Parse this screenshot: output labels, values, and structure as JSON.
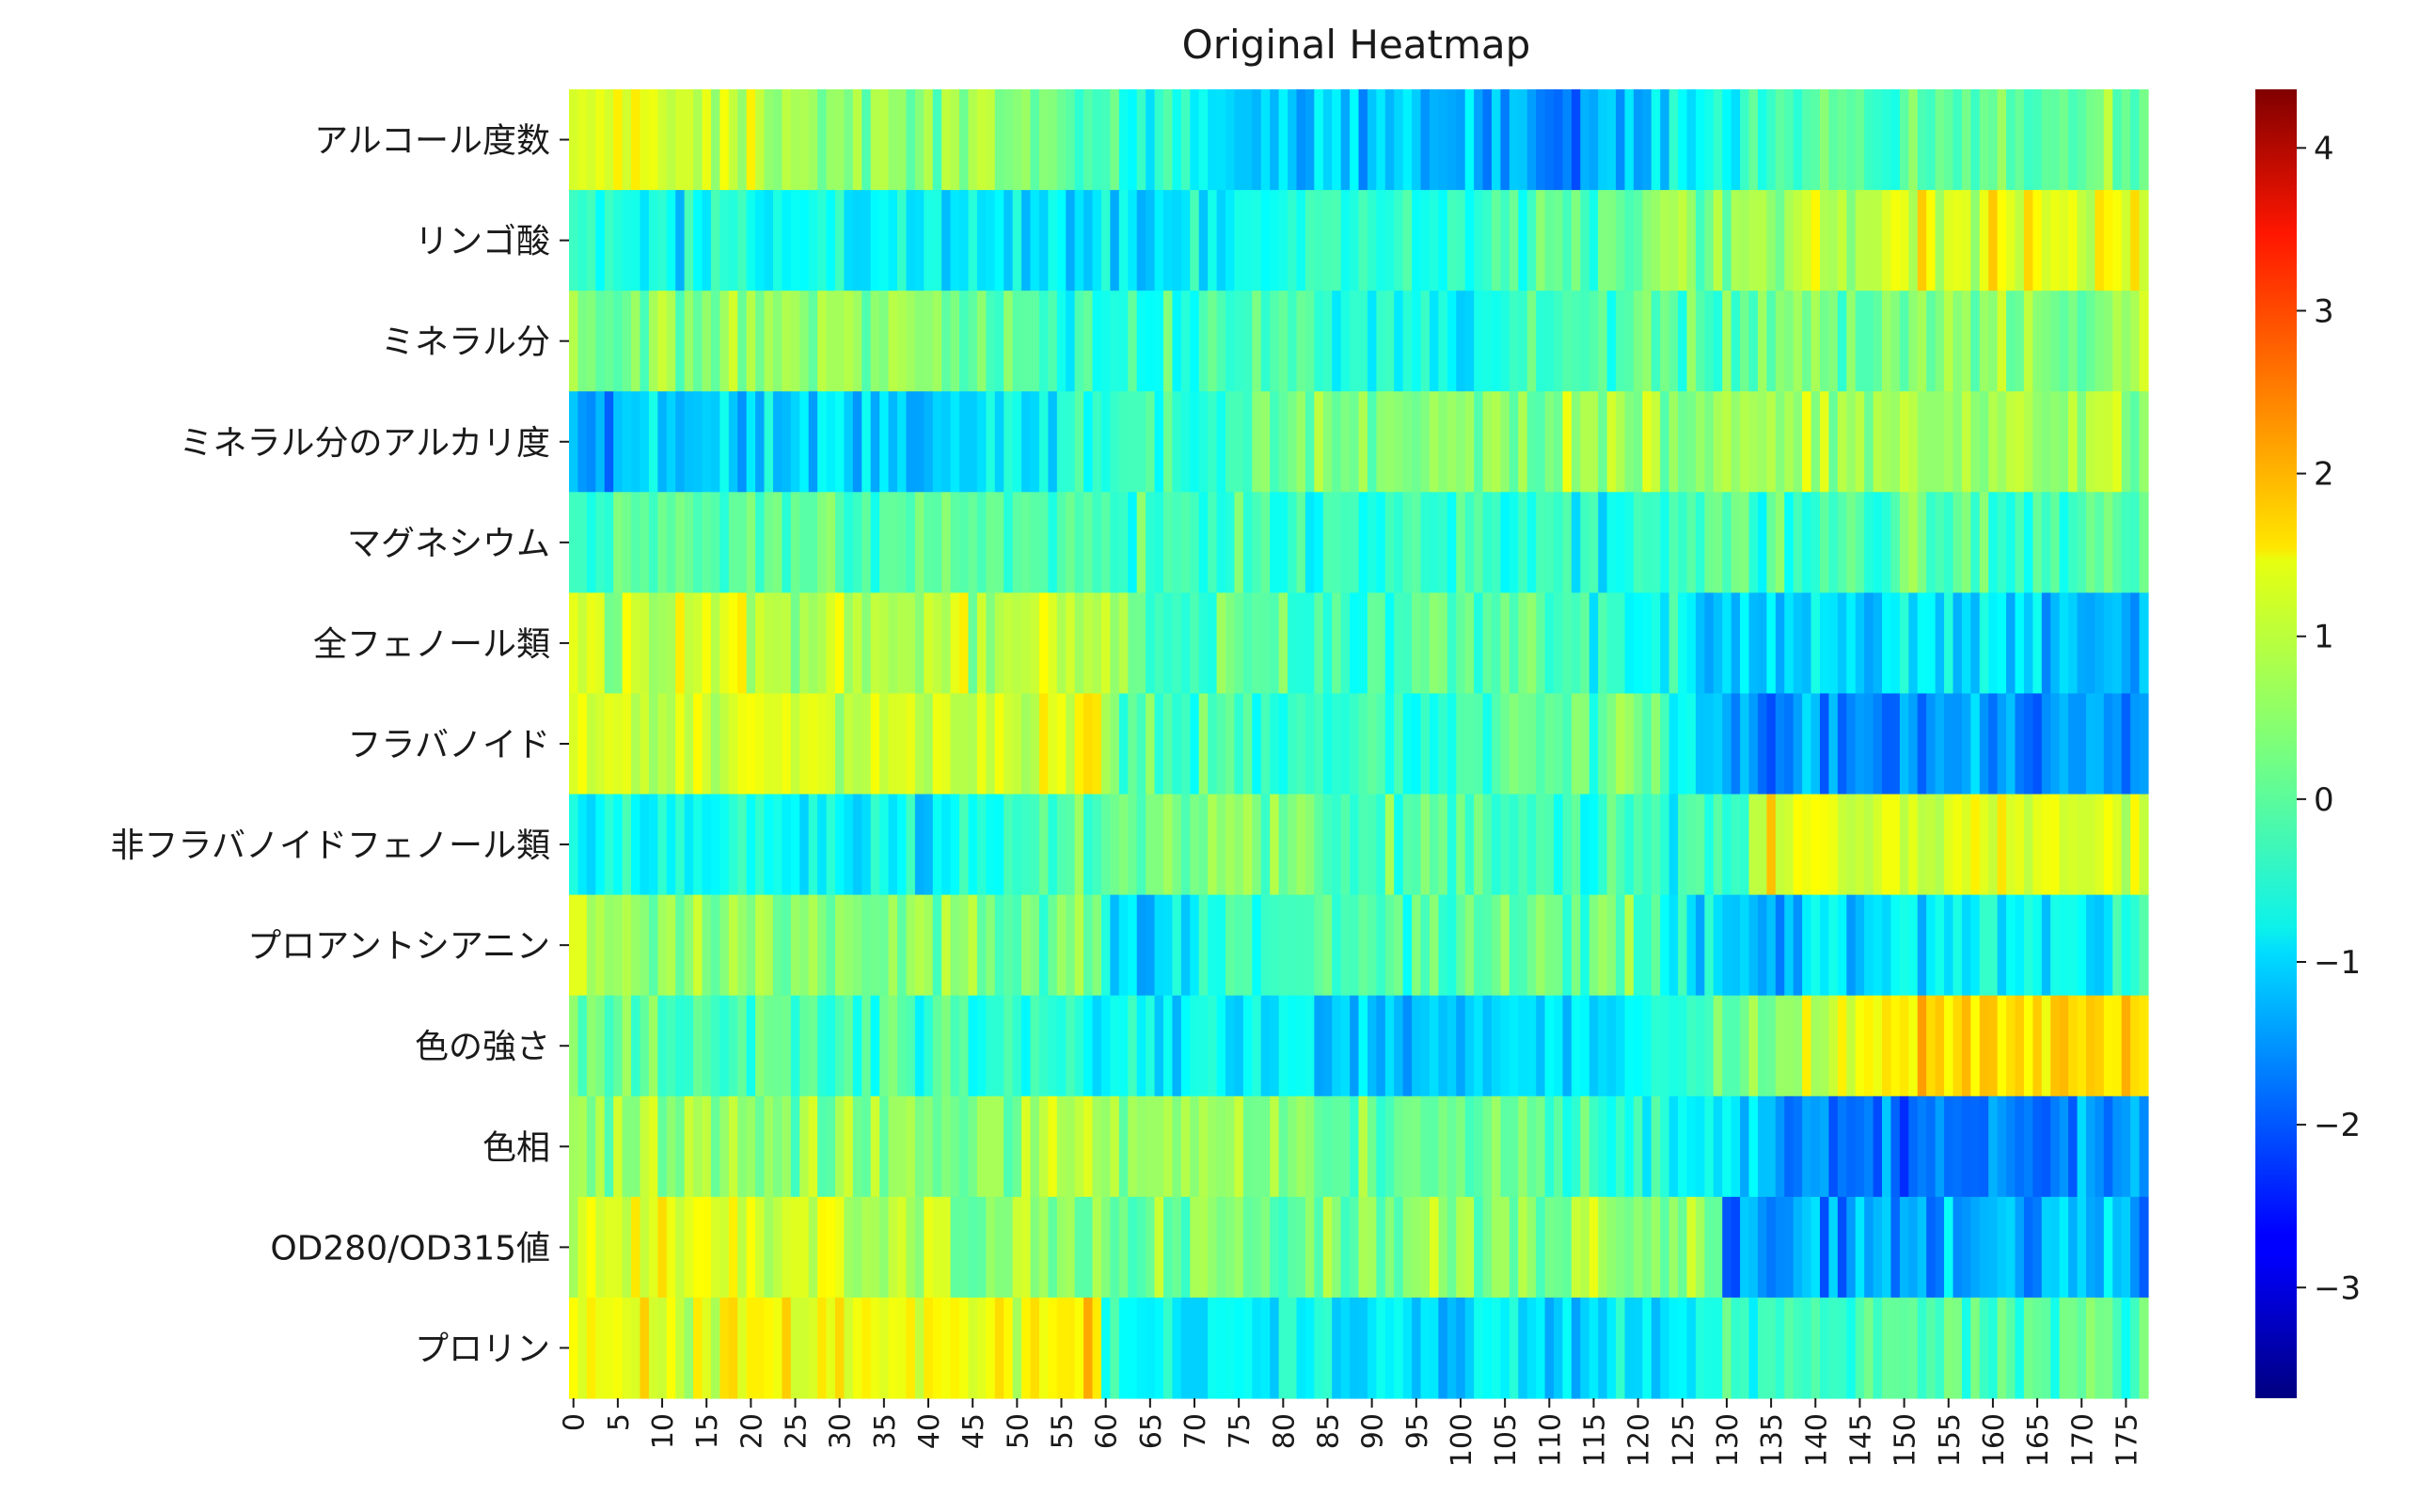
{
  "chart_data": {
    "type": "heatmap",
    "title": "Original Heatmap",
    "xlabel": "",
    "ylabel": "",
    "rows": [
      "アルコール度数",
      "リンゴ酸",
      "ミネラル分",
      "ミネラル分のアルカリ度",
      "マグネシウム",
      "全フェノール類",
      "フラバノイド",
      "非フラバノイドフェノール類",
      "プロアントシアニン",
      "色の強さ",
      "色相",
      "OD280/OD315値",
      "プロリン"
    ],
    "x_tick_labels": [
      "0",
      "5",
      "10",
      "15",
      "20",
      "25",
      "30",
      "35",
      "40",
      "45",
      "50",
      "55",
      "60",
      "65",
      "70",
      "75",
      "80",
      "85",
      "90",
      "95",
      "100",
      "105",
      "110",
      "115",
      "120",
      "125",
      "130",
      "135",
      "140",
      "145",
      "150",
      "155",
      "160",
      "165",
      "170",
      "175"
    ],
    "n_columns": 178,
    "colorbar": {
      "colormap": "jet",
      "min": -3.68,
      "max": 4.36,
      "ticks": [
        -3,
        -2,
        -1,
        0,
        1,
        2,
        3,
        4
      ],
      "tick_labels": [
        "−3",
        "−2",
        "−1",
        "0",
        "1",
        "2",
        "3",
        "4"
      ]
    },
    "row_profiles": [
      [
        [
          0,
          1.1
        ],
        [
          20,
          0.9
        ],
        [
          59,
          0.2
        ],
        [
          75,
          -0.9
        ],
        [
          95,
          -1.1
        ],
        [
          110,
          -1.5
        ],
        [
          118,
          -1.3
        ],
        [
          130,
          -0.3
        ],
        [
          150,
          0.1
        ],
        [
          178,
          0.3
        ]
      ],
      [
        [
          0,
          -0.5
        ],
        [
          20,
          -0.6
        ],
        [
          40,
          -0.6
        ],
        [
          59,
          -1.0
        ],
        [
          75,
          -0.6
        ],
        [
          100,
          -0.5
        ],
        [
          120,
          0.3
        ],
        [
          150,
          1.1
        ],
        [
          178,
          1.3
        ]
      ],
      [
        [
          0,
          0.3
        ],
        [
          30,
          0.5
        ],
        [
          59,
          -0.3
        ],
        [
          80,
          -0.2
        ],
        [
          100,
          -0.7
        ],
        [
          120,
          0.2
        ],
        [
          150,
          0.3
        ],
        [
          178,
          0.4
        ]
      ],
      [
        [
          0,
          -1.3
        ],
        [
          20,
          -0.9
        ],
        [
          40,
          -1.0
        ],
        [
          59,
          -0.3
        ],
        [
          80,
          0.3
        ],
        [
          100,
          0.4
        ],
        [
          120,
          0.6
        ],
        [
          150,
          0.6
        ],
        [
          178,
          0.7
        ]
      ],
      [
        [
          0,
          -0.1
        ],
        [
          30,
          0.1
        ],
        [
          59,
          0.0
        ],
        [
          80,
          -0.2
        ],
        [
          100,
          -0.3
        ],
        [
          120,
          -0.4
        ],
        [
          130,
          -0.1
        ],
        [
          178,
          0.0
        ]
      ],
      [
        [
          0,
          0.9
        ],
        [
          59,
          0.8
        ],
        [
          65,
          0.0
        ],
        [
          90,
          -0.2
        ],
        [
          110,
          0.0
        ],
        [
          130,
          -1.0
        ],
        [
          150,
          -0.9
        ],
        [
          178,
          -1.2
        ]
      ],
      [
        [
          0,
          1.1
        ],
        [
          59,
          1.0
        ],
        [
          62,
          0.0
        ],
        [
          100,
          -0.3
        ],
        [
          120,
          0.2
        ],
        [
          132,
          -1.5
        ],
        [
          178,
          -1.4
        ]
      ],
      [
        [
          0,
          -0.6
        ],
        [
          40,
          -0.7
        ],
        [
          59,
          0.2
        ],
        [
          100,
          0.0
        ],
        [
          130,
          -0.3
        ],
        [
          135,
          1.2
        ],
        [
          178,
          1.0
        ]
      ],
      [
        [
          0,
          0.6
        ],
        [
          59,
          0.3
        ],
        [
          62,
          -1.2
        ],
        [
          80,
          0.0
        ],
        [
          100,
          0.1
        ],
        [
          120,
          0.2
        ],
        [
          130,
          -1.2
        ],
        [
          150,
          -0.8
        ],
        [
          178,
          -0.6
        ]
      ],
      [
        [
          0,
          0.3
        ],
        [
          20,
          -0.1
        ],
        [
          59,
          -0.3
        ],
        [
          75,
          -0.9
        ],
        [
          100,
          -1.0
        ],
        [
          120,
          -0.8
        ],
        [
          130,
          0.2
        ],
        [
          150,
          1.6
        ],
        [
          178,
          1.6
        ]
      ],
      [
        [
          0,
          0.5
        ],
        [
          59,
          0.6
        ],
        [
          80,
          0.4
        ],
        [
          110,
          0.1
        ],
        [
          130,
          -0.9
        ],
        [
          145,
          -1.8
        ],
        [
          178,
          -1.5
        ]
      ],
      [
        [
          0,
          1.1
        ],
        [
          20,
          1.0
        ],
        [
          59,
          0.3
        ],
        [
          100,
          0.4
        ],
        [
          129,
          0.5
        ],
        [
          130,
          -1.6
        ],
        [
          150,
          -1.3
        ],
        [
          178,
          -1.3
        ]
      ],
      [
        [
          0,
          1.2
        ],
        [
          59,
          1.3
        ],
        [
          60,
          -0.5
        ],
        [
          90,
          -0.7
        ],
        [
          120,
          -0.9
        ],
        [
          130,
          -0.3
        ],
        [
          150,
          -0.1
        ],
        [
          178,
          -0.2
        ]
      ]
    ]
  }
}
